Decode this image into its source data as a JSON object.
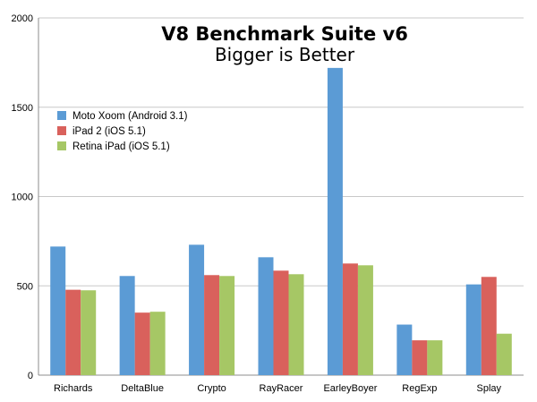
{
  "chart_data": {
    "type": "bar",
    "title": "V8 Benchmark Suite v6",
    "subtitle": "Bigger is Better",
    "xlabel": "",
    "ylabel": "",
    "ylim": [
      0,
      2000
    ],
    "yticks": [
      0,
      500,
      1000,
      1500,
      2000
    ],
    "grid": true,
    "legend_position": "left",
    "categories": [
      "Richards",
      "DeltaBlue",
      "Crypto",
      "RayRacer",
      "EarleyBoyer",
      "RegExp",
      "Splay"
    ],
    "series": [
      {
        "name": "Moto Xoom (Android 3.1)",
        "color": "#5b9bd5",
        "values": [
          720,
          555,
          730,
          660,
          1720,
          283,
          508
        ]
      },
      {
        "name": "iPad 2 (iOS 5.1)",
        "color": "#d9615c",
        "values": [
          478,
          350,
          560,
          585,
          625,
          195,
          550
        ]
      },
      {
        "name": "Retina iPad (iOS 5.1)",
        "color": "#a6c765",
        "values": [
          475,
          355,
          555,
          565,
          615,
          195,
          232
        ]
      }
    ]
  }
}
